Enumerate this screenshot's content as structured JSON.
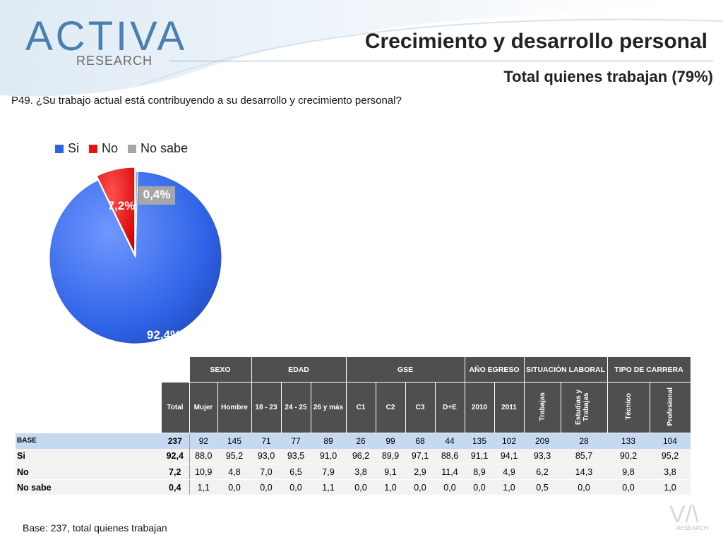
{
  "logo": {
    "main": "ACTIVA",
    "sub": "RESEARCH"
  },
  "header": {
    "title": "Crecimiento y desarrollo personal",
    "subtitle": "Total quienes trabajan (79%)"
  },
  "question": "P49. ¿Su trabajo actual está contribuyendo a su desarrollo y crecimiento personal?",
  "colors": {
    "si": "#2f63e6",
    "no": "#e81212",
    "nosabe": "#a6a6a6",
    "header_bg": "#4f4f4f",
    "base_bg": "#c5d9f1"
  },
  "chart_data": {
    "type": "pie",
    "series": [
      {
        "name": "Si",
        "value": 92.4,
        "label": "92,4%"
      },
      {
        "name": "No",
        "value": 7.2,
        "label": "7,2%"
      },
      {
        "name": "No sabe",
        "value": 0.4,
        "label": "0,4%"
      }
    ],
    "legend_position": "top-left"
  },
  "table": {
    "groups": [
      "SEXO",
      "EDAD",
      "GSE",
      "AÑO EGRESO",
      "SITUACIÓN LABORAL",
      "TIPO DE CARRERA"
    ],
    "columns": [
      "Total",
      "Mujer",
      "Hombre",
      "18 - 23",
      "24 - 25",
      "26 y más",
      "C1",
      "C2",
      "C3",
      "D+E",
      "2010",
      "2011",
      "Trabajas",
      "Estudias y Trabajas",
      "Técnico",
      "Profesional"
    ],
    "rows": [
      {
        "label": "BASE",
        "values": [
          "237",
          "92",
          "145",
          "71",
          "77",
          "89",
          "26",
          "99",
          "68",
          "44",
          "135",
          "102",
          "209",
          "28",
          "133",
          "104"
        ]
      },
      {
        "label": "Si",
        "values": [
          "92,4",
          "88,0",
          "95,2",
          "93,0",
          "93,5",
          "91,0",
          "96,2",
          "89,9",
          "97,1",
          "88,6",
          "91,1",
          "94,1",
          "93,3",
          "85,7",
          "90,2",
          "95,2"
        ]
      },
      {
        "label": "No",
        "values": [
          "7,2",
          "10,9",
          "4,8",
          "7,0",
          "6,5",
          "7,9",
          "3,8",
          "9,1",
          "2,9",
          "11,4",
          "8,9",
          "4,9",
          "6,2",
          "14,3",
          "9,8",
          "3,8"
        ]
      },
      {
        "label": "No sabe",
        "values": [
          "0,4",
          "1,1",
          "0,0",
          "0,0",
          "0,0",
          "1,1",
          "0,0",
          "1,0",
          "0,0",
          "0,0",
          "0,0",
          "1,0",
          "0,5",
          "0,0",
          "0,0",
          "1,0"
        ]
      }
    ]
  },
  "footer": {
    "base": "Base: 237, total quienes trabajan",
    "logo_text": "RESEARCH"
  }
}
